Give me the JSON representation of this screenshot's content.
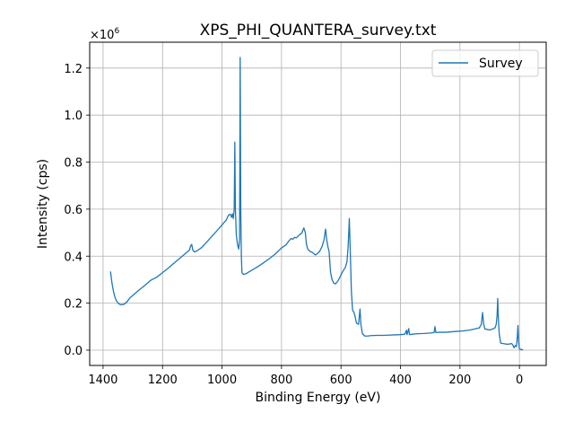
{
  "chart_data": {
    "type": "line",
    "title": "XPS_PHI_QUANTERA_survey.txt",
    "xlabel": "Binding Energy (eV)",
    "ylabel": "Intensity (cps)",
    "y_multiplier": "×10",
    "y_exponent": "6",
    "xlim": [
      1445,
      -90
    ],
    "ylim": [
      -0.065,
      1.31
    ],
    "x_reversed": true,
    "grid": true,
    "legend_position": "upper right",
    "x_ticks": [
      {
        "value": 1400,
        "label": "1400"
      },
      {
        "value": 1200,
        "label": "1200"
      },
      {
        "value": 1000,
        "label": "1000"
      },
      {
        "value": 800,
        "label": "800"
      },
      {
        "value": 600,
        "label": "600"
      },
      {
        "value": 400,
        "label": "400"
      },
      {
        "value": 200,
        "label": "200"
      },
      {
        "value": 0,
        "label": "0"
      }
    ],
    "y_ticks": [
      {
        "value": 0.0,
        "label": "0.0"
      },
      {
        "value": 0.2,
        "label": "0.2"
      },
      {
        "value": 0.4,
        "label": "0.4"
      },
      {
        "value": 0.6,
        "label": "0.6"
      },
      {
        "value": 0.8,
        "label": "0.8"
      },
      {
        "value": 1.0,
        "label": "1.0"
      },
      {
        "value": 1.2,
        "label": "1.2"
      }
    ],
    "series": [
      {
        "name": "Survey",
        "color": "#1f77b4",
        "points": [
          [
            1375,
            0.335
          ],
          [
            1370,
            0.285
          ],
          [
            1365,
            0.25
          ],
          [
            1360,
            0.225
          ],
          [
            1355,
            0.21
          ],
          [
            1348,
            0.198
          ],
          [
            1340,
            0.193
          ],
          [
            1330,
            0.195
          ],
          [
            1320,
            0.205
          ],
          [
            1310,
            0.222
          ],
          [
            1300,
            0.233
          ],
          [
            1280,
            0.255
          ],
          [
            1260,
            0.275
          ],
          [
            1240,
            0.297
          ],
          [
            1220,
            0.31
          ],
          [
            1200,
            0.33
          ],
          [
            1180,
            0.35
          ],
          [
            1160,
            0.372
          ],
          [
            1140,
            0.393
          ],
          [
            1120,
            0.415
          ],
          [
            1110,
            0.425
          ],
          [
            1105,
            0.445
          ],
          [
            1102,
            0.45
          ],
          [
            1098,
            0.425
          ],
          [
            1093,
            0.418
          ],
          [
            1085,
            0.422
          ],
          [
            1070,
            0.435
          ],
          [
            1050,
            0.462
          ],
          [
            1030,
            0.49
          ],
          [
            1010,
            0.518
          ],
          [
            995,
            0.54
          ],
          [
            985,
            0.555
          ],
          [
            978,
            0.575
          ],
          [
            972,
            0.578
          ],
          [
            968,
            0.565
          ],
          [
            965,
            0.58
          ],
          [
            962,
            0.56
          ],
          [
            959,
            0.6
          ],
          [
            957,
            0.885
          ],
          [
            955,
            0.6
          ],
          [
            952,
            0.49
          ],
          [
            948,
            0.45
          ],
          [
            944,
            0.43
          ],
          [
            941,
            0.47
          ],
          [
            939,
            1.245
          ],
          [
            937,
            0.6
          ],
          [
            935,
            0.4
          ],
          [
            933,
            0.33
          ],
          [
            928,
            0.322
          ],
          [
            920,
            0.325
          ],
          [
            900,
            0.34
          ],
          [
            880,
            0.355
          ],
          [
            860,
            0.372
          ],
          [
            840,
            0.39
          ],
          [
            820,
            0.41
          ],
          [
            800,
            0.435
          ],
          [
            785,
            0.448
          ],
          [
            775,
            0.465
          ],
          [
            768,
            0.475
          ],
          [
            762,
            0.472
          ],
          [
            756,
            0.48
          ],
          [
            750,
            0.478
          ],
          [
            740,
            0.49
          ],
          [
            732,
            0.498
          ],
          [
            725,
            0.52
          ],
          [
            720,
            0.5
          ],
          [
            716,
            0.45
          ],
          [
            712,
            0.43
          ],
          [
            704,
            0.42
          ],
          [
            695,
            0.415
          ],
          [
            686,
            0.405
          ],
          [
            680,
            0.41
          ],
          [
            672,
            0.42
          ],
          [
            664,
            0.44
          ],
          [
            657,
            0.47
          ],
          [
            652,
            0.515
          ],
          [
            648,
            0.47
          ],
          [
            644,
            0.44
          ],
          [
            640,
            0.42
          ],
          [
            635,
            0.33
          ],
          [
            630,
            0.3
          ],
          [
            624,
            0.285
          ],
          [
            618,
            0.282
          ],
          [
            610,
            0.295
          ],
          [
            600,
            0.32
          ],
          [
            592,
            0.34
          ],
          [
            586,
            0.35
          ],
          [
            580,
            0.375
          ],
          [
            576,
            0.44
          ],
          [
            572,
            0.56
          ],
          [
            569,
            0.43
          ],
          [
            565,
            0.25
          ],
          [
            561,
            0.17
          ],
          [
            556,
            0.16
          ],
          [
            552,
            0.14
          ],
          [
            548,
            0.115
          ],
          [
            541,
            0.11
          ],
          [
            536,
            0.175
          ],
          [
            533,
            0.11
          ],
          [
            528,
            0.07
          ],
          [
            520,
            0.06
          ],
          [
            510,
            0.06
          ],
          [
            500,
            0.062
          ],
          [
            480,
            0.063
          ],
          [
            460,
            0.063
          ],
          [
            440,
            0.064
          ],
          [
            420,
            0.065
          ],
          [
            400,
            0.066
          ],
          [
            385,
            0.068
          ],
          [
            380,
            0.085
          ],
          [
            378,
            0.066
          ],
          [
            372,
            0.092
          ],
          [
            370,
            0.066
          ],
          [
            360,
            0.068
          ],
          [
            340,
            0.07
          ],
          [
            320,
            0.071
          ],
          [
            300,
            0.073
          ],
          [
            287,
            0.075
          ],
          [
            284,
            0.1
          ],
          [
            281,
            0.075
          ],
          [
            270,
            0.076
          ],
          [
            250,
            0.076
          ],
          [
            230,
            0.078
          ],
          [
            210,
            0.08
          ],
          [
            190,
            0.082
          ],
          [
            170,
            0.085
          ],
          [
            150,
            0.09
          ],
          [
            135,
            0.095
          ],
          [
            128,
            0.11
          ],
          [
            124,
            0.16
          ],
          [
            120,
            0.11
          ],
          [
            116,
            0.09
          ],
          [
            108,
            0.088
          ],
          [
            100,
            0.086
          ],
          [
            90,
            0.09
          ],
          [
            82,
            0.095
          ],
          [
            78,
            0.11
          ],
          [
            75,
            0.15
          ],
          [
            73,
            0.22
          ],
          [
            71,
            0.14
          ],
          [
            68,
            0.07
          ],
          [
            63,
            0.03
          ],
          [
            55,
            0.028
          ],
          [
            40,
            0.025
          ],
          [
            26,
            0.028
          ],
          [
            22,
            0.022
          ],
          [
            18,
            0.01
          ],
          [
            14,
            0.02
          ],
          [
            10,
            0.015
          ],
          [
            7,
            0.06
          ],
          [
            5,
            0.105
          ],
          [
            3,
            0.04
          ],
          [
            0,
            0.005
          ],
          [
            -5,
            0.003
          ],
          [
            -12,
            0.002
          ]
        ]
      }
    ]
  }
}
